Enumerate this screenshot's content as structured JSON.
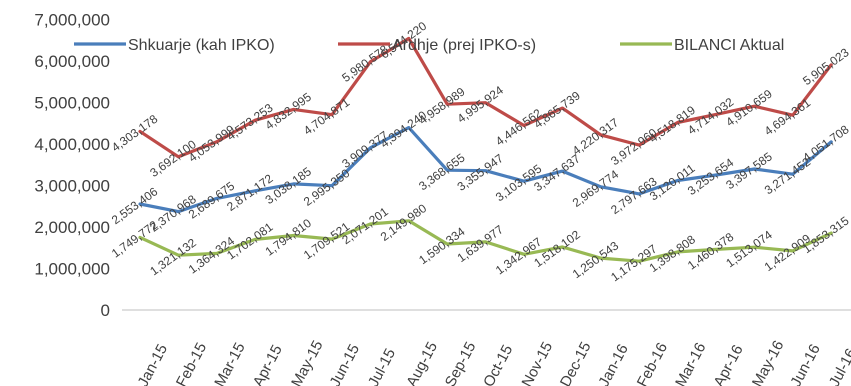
{
  "chart_data": {
    "type": "line",
    "categories": [
      "Jan-15",
      "Feb-15",
      "Mar-15",
      "Apr-15",
      "May-15",
      "Jun-15",
      "Jul-15",
      "Aug-15",
      "Sep-15",
      "Oct-15",
      "Nov-15",
      "Dec-15",
      "Jan-16",
      "Feb-16",
      "Mar-16",
      "Apr-16",
      "May-16",
      "Jun-16",
      "Jul-16"
    ],
    "series": [
      {
        "name": "Shkuarje (kah IPKO)",
        "color": "#4a7ebb",
        "values": [
          2553406,
          2370968,
          2689675,
          2871172,
          3038185,
          2995350,
          3909377,
          4394240,
          3368655,
          3355947,
          3103595,
          3347637,
          2969774,
          2797663,
          3120011,
          3253654,
          3397585,
          3271452,
          4051708
        ],
        "labels": [
          "2,553,406",
          "2,370,968",
          "2,689,675",
          "2,871,172",
          "3,038,185",
          "2,995,350",
          "3,909,377",
          "4,394,240",
          "3,368,655",
          "3,355,947",
          "3,103,595",
          "3,347,637",
          "2,969,774",
          "2,797,663",
          "3,120,011",
          "3,253,654",
          "3,397,585",
          "3,271,452",
          "4,051,708"
        ]
      },
      {
        "name": "Ardhje (prej IPKO-s)",
        "color": "#be4b48",
        "values": [
          4303178,
          3692100,
          4053999,
          4573253,
          4832995,
          4704871,
          5980578,
          6544220,
          4958989,
          4995924,
          4446562,
          4865739,
          4220317,
          3972960,
          4518819,
          4714032,
          4910659,
          4694361,
          5905023
        ],
        "labels": [
          "4,303,178",
          "3,692,100",
          "4,053,999",
          "4,573,253",
          "4,832,995",
          "4,704,871",
          "5,980,578",
          "6,544,220",
          "4,958,989",
          "4,995,924",
          "4,446,562",
          "4,865,739",
          "4,220,317",
          "3,972,960",
          "4,518,819",
          "4,714,032",
          "4,910,659",
          "4,694,361",
          "5,905,023"
        ]
      },
      {
        "name": "BILANCI Aktual",
        "color": "#98b954",
        "values": [
          1749772,
          1321132,
          1364324,
          1702081,
          1794810,
          1709521,
          2071201,
          2149980,
          1590334,
          1639977,
          1342967,
          1518102,
          1250543,
          1175297,
          1398808,
          1460378,
          1513074,
          1422909,
          1853315
        ],
        "labels": [
          "1,749,772",
          "1,321,132",
          "1,364,324",
          "1,702,081",
          "1,794,810",
          "1,709,521",
          "2,071,201",
          "2,149,980",
          "1,590,334",
          "1,639,977",
          "1,342,967",
          "1,518,102",
          "1,250,543",
          "1,175,297",
          "1,398,808",
          "1,460,378",
          "1,513,074",
          "1,422,909",
          "1,853,315"
        ]
      }
    ],
    "yticks": [
      "0",
      "1,000,000",
      "2,000,000",
      "3,000,000",
      "4,000,000",
      "5,000,000",
      "6,000,000",
      "7,000,000"
    ],
    "ylim": [
      0,
      7000000
    ],
    "legend_position": "top",
    "grid": false
  }
}
